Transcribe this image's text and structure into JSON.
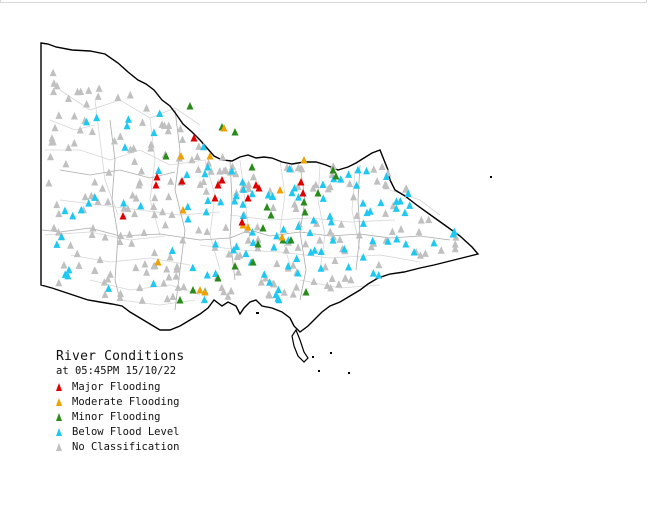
{
  "legend": {
    "title": "River Conditions",
    "timestamp": "at 05:45PM 15/10/22",
    "items": [
      {
        "label": "Major Flooding",
        "color": "#e00000"
      },
      {
        "label": "Moderate Flooding",
        "color": "#f0a000"
      },
      {
        "label": "Minor Flooding",
        "color": "#2a8a1a"
      },
      {
        "label": "Below Flood Level",
        "color": "#1ec8f0"
      },
      {
        "label": "No Classification",
        "color": "#c0c0c0"
      }
    ]
  },
  "station_counts": {
    "major": 14,
    "moderate": 12,
    "minor": 22,
    "below": 115,
    "none": 240
  }
}
